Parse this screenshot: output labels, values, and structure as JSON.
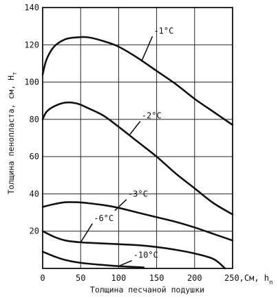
{
  "chart_data": {
    "type": "line",
    "x_axis_label": "Толщина песчаной подушки",
    "x_unit_label": "250,См, h",
    "x_unit_sub": "п",
    "y_axis_label": "Толщина пенопласта, см, H",
    "y_unit_sub": "т",
    "xlim": [
      0,
      250
    ],
    "ylim": [
      0,
      140
    ],
    "grid": true,
    "x_ticks": [
      {
        "value": 0,
        "label": "0"
      },
      {
        "value": 50,
        "label": "50"
      },
      {
        "value": 100,
        "label": "100"
      },
      {
        "value": 150,
        "label": "150"
      },
      {
        "value": 200,
        "label": "200"
      }
    ],
    "y_ticks": [
      {
        "value": 20,
        "label": "20"
      },
      {
        "value": 40,
        "label": "40"
      },
      {
        "value": 60,
        "label": "60"
      },
      {
        "value": 80,
        "label": "80"
      },
      {
        "value": 100,
        "label": "100"
      },
      {
        "value": 120,
        "label": "120"
      },
      {
        "value": 140,
        "label": "140"
      }
    ],
    "series": [
      {
        "name": "-1°C",
        "points": [
          [
            0,
            104
          ],
          [
            5,
            112
          ],
          [
            15,
            119
          ],
          [
            30,
            123
          ],
          [
            45,
            124
          ],
          [
            60,
            124
          ],
          [
            80,
            122
          ],
          [
            100,
            119
          ],
          [
            125,
            113
          ],
          [
            150,
            106
          ],
          [
            175,
            99
          ],
          [
            200,
            91
          ],
          [
            225,
            84
          ],
          [
            250,
            77
          ]
        ],
        "label_pos": [
          -11,
          131.5
        ],
        "leader": [
          [
            -3,
            127.5
          ],
          [
            -12,
            114
          ]
        ]
      },
      {
        "name": "-2°C",
        "points": [
          [
            0,
            80
          ],
          [
            5,
            84
          ],
          [
            15,
            87
          ],
          [
            30,
            89
          ],
          [
            45,
            88.5
          ],
          [
            60,
            86
          ],
          [
            80,
            82
          ],
          [
            100,
            76
          ],
          [
            125,
            68
          ],
          [
            150,
            60
          ],
          [
            175,
            51
          ],
          [
            200,
            43
          ],
          [
            225,
            35
          ],
          [
            250,
            29
          ]
        ],
        "label_pos": [
          -8,
          84.5
        ],
        "leader": [
          [
            -4,
            81
          ],
          [
            -12,
            74
          ]
        ]
      },
      {
        "name": "-3°C",
        "points": [
          [
            0,
            33
          ],
          [
            15,
            34.5
          ],
          [
            30,
            35.5
          ],
          [
            45,
            35.5
          ],
          [
            60,
            35
          ],
          [
            80,
            34
          ],
          [
            100,
            32.5
          ],
          [
            125,
            30
          ],
          [
            150,
            27.5
          ],
          [
            175,
            25
          ],
          [
            200,
            22
          ],
          [
            225,
            18.5
          ],
          [
            250,
            15
          ]
        ],
        "label_pos": [
          -3,
          48
        ],
        "leader": [
          [
            -2,
            44
          ],
          [
            -12,
            38
          ]
        ]
      },
      {
        "name": "-6°C",
        "points": [
          [
            0,
            20
          ],
          [
            15,
            17
          ],
          [
            30,
            15
          ],
          [
            50,
            14
          ],
          [
            75,
            13.5
          ],
          [
            100,
            13
          ],
          [
            125,
            12.5
          ],
          [
            150,
            11.5
          ],
          [
            175,
            10
          ],
          [
            200,
            8
          ],
          [
            225,
            5
          ],
          [
            240,
            0
          ]
        ],
        "label_pos": [
          -26,
          30
        ],
        "leader": [
          [
            -20,
            26
          ],
          [
            -30,
            16
          ]
        ]
      },
      {
        "name": "-10°C",
        "points": [
          [
            0,
            9
          ],
          [
            15,
            6.5
          ],
          [
            30,
            4.5
          ],
          [
            50,
            3
          ],
          [
            75,
            2
          ],
          [
            100,
            1.2
          ],
          [
            120,
            0.8
          ],
          [
            133,
            0.5
          ]
        ],
        "label_pos": [
          -24,
          9
        ],
        "leader": [
          [
            -28,
            5.5
          ],
          [
            -40,
            2.5
          ]
        ]
      }
    ]
  }
}
